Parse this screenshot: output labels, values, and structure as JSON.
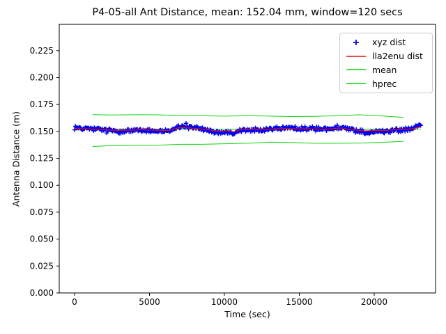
{
  "window_title": "P4-05-all Ant Distance, mean: 152.04 mm, window=120 secs",
  "chart_data": {
    "type": "scatter+line",
    "title": "P4-05-all Ant Distance, mean: 152.04 mm, window=120 secs",
    "xlabel": "Time (sec)",
    "ylabel": "Antenna Distance (m)",
    "xlim": [
      -1023,
      24093
    ],
    "ylim": [
      0.0,
      0.2494
    ],
    "xticks": [
      0,
      5000,
      10000,
      15000,
      20000
    ],
    "yticks": [
      0.0,
      0.025,
      0.05,
      0.075,
      0.1,
      0.125,
      0.15,
      0.175,
      0.2,
      0.225
    ],
    "grid": false,
    "mean_mm": 152.04,
    "window_secs": 120,
    "series": {
      "xyz": {
        "name": "xyz dist",
        "type": "scatter",
        "marker": "+",
        "color": "#0202ee",
        "trend_t": [
          0,
          400,
          900,
          1400,
          2000,
          2500,
          2900,
          3300,
          3800,
          4300,
          4800,
          5300,
          5800,
          6200,
          6500,
          6900,
          7200,
          7600,
          8000,
          8400,
          8800,
          9200,
          9600,
          9900,
          10150,
          10400,
          10650,
          10900,
          11300,
          11700,
          12100,
          12500,
          12900,
          13300,
          13700,
          14100,
          14500,
          15000,
          15500,
          16000,
          16500,
          17000,
          17400,
          17700,
          18100,
          18500,
          19000,
          19400,
          19800,
          20200,
          20600,
          21000,
          21400,
          21800,
          22200,
          22600,
          22900,
          23100
        ],
        "trend_v": [
          0.1536,
          0.1532,
          0.1527,
          0.1521,
          0.1513,
          0.1506,
          0.15,
          0.1507,
          0.1504,
          0.1511,
          0.1509,
          0.1506,
          0.1502,
          0.15,
          0.1514,
          0.1542,
          0.1549,
          0.1541,
          0.1535,
          0.1527,
          0.1514,
          0.1501,
          0.1489,
          0.1484,
          0.1501,
          0.148,
          0.1477,
          0.1506,
          0.1514,
          0.1517,
          0.1513,
          0.1509,
          0.152,
          0.1527,
          0.153,
          0.1532,
          0.1529,
          0.1527,
          0.1528,
          0.1525,
          0.1522,
          0.1523,
          0.1536,
          0.1541,
          0.1529,
          0.1513,
          0.1503,
          0.1491,
          0.1499,
          0.1501,
          0.1497,
          0.1506,
          0.1511,
          0.1513,
          0.1519,
          0.1531,
          0.1549,
          0.1556
        ],
        "n_points": 420,
        "t_max": 23100,
        "noise_amp": 0.0022,
        "outlier_prob": 0.05,
        "outlier_amp": 0.0018,
        "seed": 12345
      },
      "lla2enu": {
        "name": "lla2enu dist",
        "type": "line",
        "color": "#e01212",
        "base": 0.152,
        "damp": 0.55,
        "sample_step": 150,
        "t_range": [
          0,
          23100
        ]
      },
      "mean": {
        "name": "mean",
        "type": "hline",
        "color": "#0fd30f",
        "value": 0.15204,
        "t_range": [
          0,
          23100
        ]
      },
      "hprec": {
        "name": "hprec",
        "type": "bounds",
        "color": "#0fd30f",
        "t": [
          1215,
          2500,
          4000,
          5500,
          7000,
          8500,
          10000,
          11500,
          13000,
          14500,
          16000,
          17500,
          19000,
          20500,
          21960
        ],
        "upper": [
          0.1656,
          0.1652,
          0.1655,
          0.1654,
          0.1648,
          0.1645,
          0.1642,
          0.1646,
          0.1642,
          0.1638,
          0.164,
          0.1646,
          0.1654,
          0.1644,
          0.163
        ],
        "lower": [
          0.136,
          0.1368,
          0.137,
          0.1372,
          0.138,
          0.138,
          0.1385,
          0.139,
          0.14,
          0.1396,
          0.139,
          0.139,
          0.1392,
          0.1398,
          0.1408
        ]
      }
    },
    "legend": {
      "position": "upper right",
      "entries": [
        {
          "label": "xyz dist",
          "swatch": "plus-marker",
          "color": "#0202ee"
        },
        {
          "label": "lla2enu dist",
          "swatch": "line",
          "color": "#e01212"
        },
        {
          "label": "mean",
          "swatch": "line",
          "color": "#0fd30f"
        },
        {
          "label": "hprec",
          "swatch": "line",
          "color": "#0fd30f"
        }
      ]
    }
  }
}
